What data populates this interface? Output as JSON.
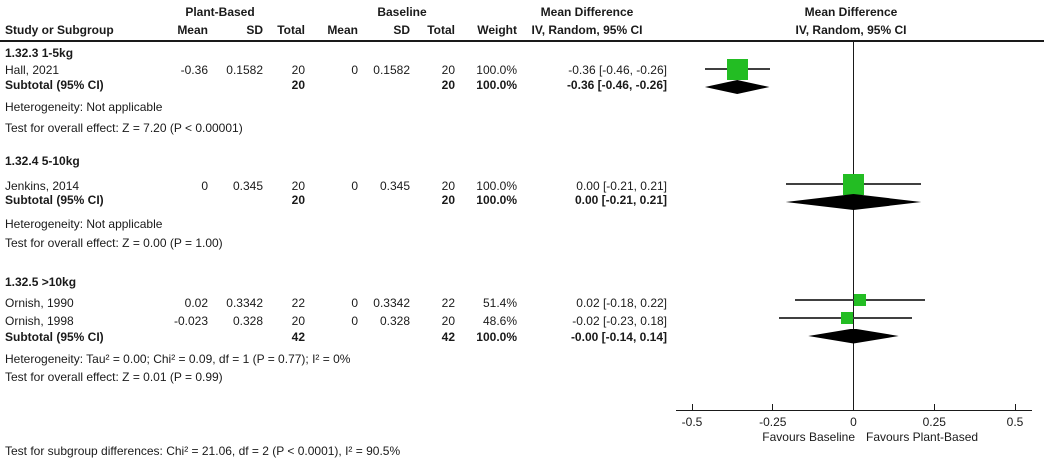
{
  "colors": {
    "marker_green": "#23bd23",
    "diamond_black": "#000000",
    "ci_line": "#404040",
    "axis_line": "#1a1a1a"
  },
  "table": {
    "header": {
      "group1": "Plant-Based",
      "group2": "Baseline",
      "study": "Study or Subgroup",
      "mean": "Mean",
      "sd": "SD",
      "total": "Total",
      "weight": "Weight",
      "md_title": "Mean Difference",
      "md_sub": "IV, Random, 95% CI",
      "plot_title": "Mean Difference",
      "plot_sub": "IV, Random, 95% CI"
    },
    "subgroups": [
      {
        "title": "1.32.3 1-5kg",
        "studies": [
          {
            "name": "Hall, 2021",
            "pb_mean": "-0.36",
            "pb_sd": "0.1582",
            "pb_total": "20",
            "bl_mean": "0",
            "bl_sd": "0.1582",
            "bl_total": "20",
            "weight": "100.0%",
            "md": "-0.36 [-0.46, -0.26]"
          }
        ],
        "subtotal": {
          "label": "Subtotal (95% CI)",
          "pb_total": "20",
          "bl_total": "20",
          "weight": "100.0%",
          "md": "-0.36 [-0.46, -0.26]"
        },
        "heterogeneity": "Heterogeneity: Not applicable",
        "overall": "Test for overall effect: Z = 7.20 (P < 0.00001)"
      },
      {
        "title": "1.32.4 5-10kg",
        "studies": [
          {
            "name": "Jenkins, 2014",
            "pb_mean": "0",
            "pb_sd": "0.345",
            "pb_total": "20",
            "bl_mean": "0",
            "bl_sd": "0.345",
            "bl_total": "20",
            "weight": "100.0%",
            "md": "0.00 [-0.21, 0.21]"
          }
        ],
        "subtotal": {
          "label": "Subtotal (95% CI)",
          "pb_total": "20",
          "bl_total": "20",
          "weight": "100.0%",
          "md": "0.00 [-0.21, 0.21]"
        },
        "heterogeneity": "Heterogeneity: Not applicable",
        "overall": "Test for overall effect: Z = 0.00 (P = 1.00)"
      },
      {
        "title": "1.32.5 >10kg",
        "studies": [
          {
            "name": "Ornish, 1990",
            "pb_mean": "0.02",
            "pb_sd": "0.3342",
            "pb_total": "22",
            "bl_mean": "0",
            "bl_sd": "0.3342",
            "bl_total": "22",
            "weight": "51.4%",
            "md": "0.02 [-0.18, 0.22]"
          },
          {
            "name": "Ornish, 1998",
            "pb_mean": "-0.023",
            "pb_sd": "0.328",
            "pb_total": "20",
            "bl_mean": "0",
            "bl_sd": "0.328",
            "bl_total": "20",
            "weight": "48.6%",
            "md": "-0.02 [-0.23, 0.18]"
          }
        ],
        "subtotal": {
          "label": "Subtotal (95% CI)",
          "pb_total": "42",
          "bl_total": "42",
          "weight": "100.0%",
          "md": "-0.00 [-0.14, 0.14]"
        },
        "heterogeneity": "Heterogeneity: Tau² = 0.00; Chi² = 0.09, df = 1 (P = 0.77); I² = 0%",
        "overall": "Test for overall effect: Z = 0.01 (P = 0.99)"
      }
    ],
    "footer": "Test for subgroup differences: Chi² = 21.06, df = 2 (P < 0.0001), I² = 90.5%"
  },
  "chart_data": {
    "type": "forest",
    "x_axis": {
      "ticks": [
        -0.5,
        -0.25,
        0,
        0.25,
        0.5
      ],
      "tick_labels": [
        "-0.5",
        "-0.25",
        "0",
        "0.25",
        "0.5"
      ],
      "range": [
        -0.5,
        0.5
      ],
      "left_label": "Favours Baseline",
      "right_label": "Favours Plant-Based"
    },
    "subgroups": [
      {
        "name": "1.32.3 1-5kg",
        "studies": [
          {
            "label": "Hall, 2021",
            "estimate": -0.36,
            "ci_low": -0.46,
            "ci_high": -0.26,
            "weight_pct": 100.0
          }
        ],
        "subtotal": {
          "estimate": -0.36,
          "ci_low": -0.46,
          "ci_high": -0.26
        }
      },
      {
        "name": "1.32.4 5-10kg",
        "studies": [
          {
            "label": "Jenkins, 2014",
            "estimate": 0.0,
            "ci_low": -0.21,
            "ci_high": 0.21,
            "weight_pct": 100.0
          }
        ],
        "subtotal": {
          "estimate": 0.0,
          "ci_low": -0.21,
          "ci_high": 0.21
        }
      },
      {
        "name": "1.32.5 >10kg",
        "studies": [
          {
            "label": "Ornish, 1990",
            "estimate": 0.02,
            "ci_low": -0.18,
            "ci_high": 0.22,
            "weight_pct": 51.4
          },
          {
            "label": "Ornish, 1998",
            "estimate": -0.02,
            "ci_low": -0.23,
            "ci_high": 0.18,
            "weight_pct": 48.6
          }
        ],
        "subtotal": {
          "estimate": 0.0,
          "ci_low": -0.14,
          "ci_high": 0.14
        }
      }
    ]
  }
}
